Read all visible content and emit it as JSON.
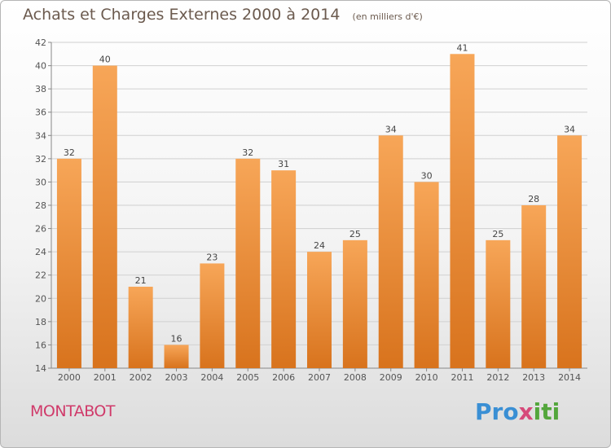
{
  "header": {
    "title": "Achats et Charges Externes 2000 à 2014",
    "subtitle": "(en milliers d'€)"
  },
  "footer": {
    "city": "MONTABOT",
    "logo": {
      "p1": "Pro",
      "p2": "x",
      "p3": "iti"
    }
  },
  "colors": {
    "bar_top": "#f7a658",
    "bar_bottom": "#d8731d",
    "title": "#6b5a4e",
    "city": "#d03a6a"
  },
  "chart_data": {
    "type": "bar",
    "title": "Achats et Charges Externes 2000 à 2014",
    "subtitle": "(en milliers d'€)",
    "categories": [
      "2000",
      "2001",
      "2002",
      "2003",
      "2004",
      "2005",
      "2006",
      "2007",
      "2008",
      "2009",
      "2010",
      "2011",
      "2012",
      "2013",
      "2014"
    ],
    "values": [
      32,
      40,
      21,
      16,
      23,
      32,
      31,
      24,
      25,
      34,
      30,
      41,
      25,
      28,
      34
    ],
    "ylim": [
      14,
      42
    ],
    "yticks": [
      14,
      16,
      18,
      20,
      22,
      24,
      26,
      28,
      30,
      32,
      34,
      36,
      38,
      40,
      42
    ],
    "grid": true,
    "data_labels": true,
    "legend": "none"
  }
}
